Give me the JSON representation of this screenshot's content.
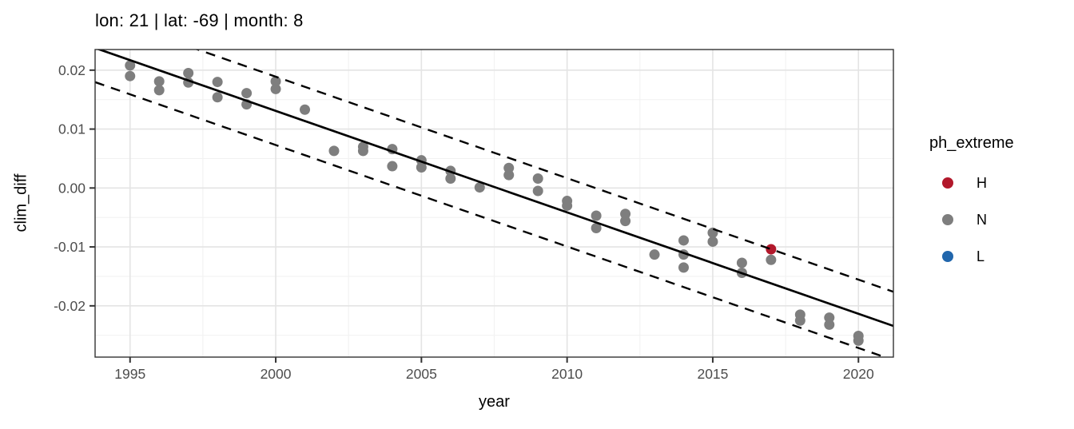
{
  "chart_data": {
    "type": "scatter",
    "title": "lon: 21 | lat: -69 | month: 8",
    "xlabel": "year",
    "ylabel": "clim_diff",
    "xlim": [
      1993.8,
      2021.2
    ],
    "ylim": [
      -0.0287,
      0.0235
    ],
    "grid": true,
    "legend_position": "right",
    "x_tick_values": [
      1995,
      2000,
      2005,
      2010,
      2015,
      2020
    ],
    "x_tick_labels": [
      "1995",
      "2000",
      "2005",
      "2010",
      "2015",
      "2020"
    ],
    "x_minor_ticks": [
      1997.5,
      2002.5,
      2007.5,
      2012.5,
      2017.5
    ],
    "y_tick_values": [
      0.02,
      0.01,
      0.0,
      -0.01,
      -0.02
    ],
    "y_tick_labels": [
      "0.02",
      "0.01",
      "0.00",
      "-0.01",
      "-0.02"
    ],
    "y_minor_ticks": [
      0.015,
      0.005,
      -0.005,
      -0.015,
      -0.025
    ],
    "legend": {
      "title": "ph_extreme",
      "entries": [
        {
          "label": "H",
          "color": "#b2182b"
        },
        {
          "label": "N",
          "color": "#7e7e7e"
        },
        {
          "label": "L",
          "color": "#2166ac"
        }
      ]
    },
    "series": [
      {
        "name": "N",
        "color": "#7e7e7e",
        "points": [
          [
            1995,
            0.0208
          ],
          [
            1995,
            0.019
          ],
          [
            1996,
            0.0181
          ],
          [
            1996,
            0.0166
          ],
          [
            1997,
            0.0195
          ],
          [
            1997,
            0.0179
          ],
          [
            1998,
            0.018
          ],
          [
            1998,
            0.0154
          ],
          [
            1999,
            0.0161
          ],
          [
            1999,
            0.0142
          ],
          [
            2000,
            0.0181
          ],
          [
            2000,
            0.0168
          ],
          [
            2001,
            0.0133
          ],
          [
            2002,
            0.0063
          ],
          [
            2003,
            0.007
          ],
          [
            2003,
            0.0063
          ],
          [
            2004,
            0.0066
          ],
          [
            2004,
            0.0037
          ],
          [
            2005,
            0.0047
          ],
          [
            2005,
            0.0035
          ],
          [
            2006,
            0.0029
          ],
          [
            2006,
            0.0016
          ],
          [
            2007,
            0.0001
          ],
          [
            2008,
            0.0034
          ],
          [
            2008,
            0.0022
          ],
          [
            2009,
            0.0016
          ],
          [
            2009,
            -0.0005
          ],
          [
            2010,
            -0.0022
          ],
          [
            2010,
            -0.003
          ],
          [
            2011,
            -0.0047
          ],
          [
            2011,
            -0.0068
          ],
          [
            2012,
            -0.0044
          ],
          [
            2012,
            -0.0056
          ],
          [
            2013,
            -0.0113
          ],
          [
            2014,
            -0.0089
          ],
          [
            2014,
            -0.0113
          ],
          [
            2014,
            -0.0135
          ],
          [
            2015,
            -0.0076
          ],
          [
            2015,
            -0.0091
          ],
          [
            2016,
            -0.0127
          ],
          [
            2016,
            -0.0144
          ],
          [
            2017,
            -0.0122
          ],
          [
            2018,
            -0.0215
          ],
          [
            2018,
            -0.0225
          ],
          [
            2019,
            -0.022
          ],
          [
            2019,
            -0.0232
          ],
          [
            2020,
            -0.0251
          ],
          [
            2020,
            -0.0259
          ]
        ]
      },
      {
        "name": "H",
        "color": "#b2182b",
        "points": [
          [
            2017,
            -0.0104
          ]
        ]
      },
      {
        "name": "L",
        "color": "#2166ac",
        "points": []
      }
    ],
    "trend": {
      "value_at_1995": 0.0217,
      "slope_per_year": -0.001722,
      "line_style": "solid",
      "color": "#000000"
    },
    "prediction_band": {
      "offset": 0.0058,
      "line_style": "dashed",
      "color": "#000000"
    }
  },
  "style_colors": {
    "grid_major": "#e4e4e4",
    "grid_minor": "#f2f2f2",
    "panel_border": "#333333",
    "tick_mark": "#333333",
    "tick_label": "#4d4d4d"
  }
}
